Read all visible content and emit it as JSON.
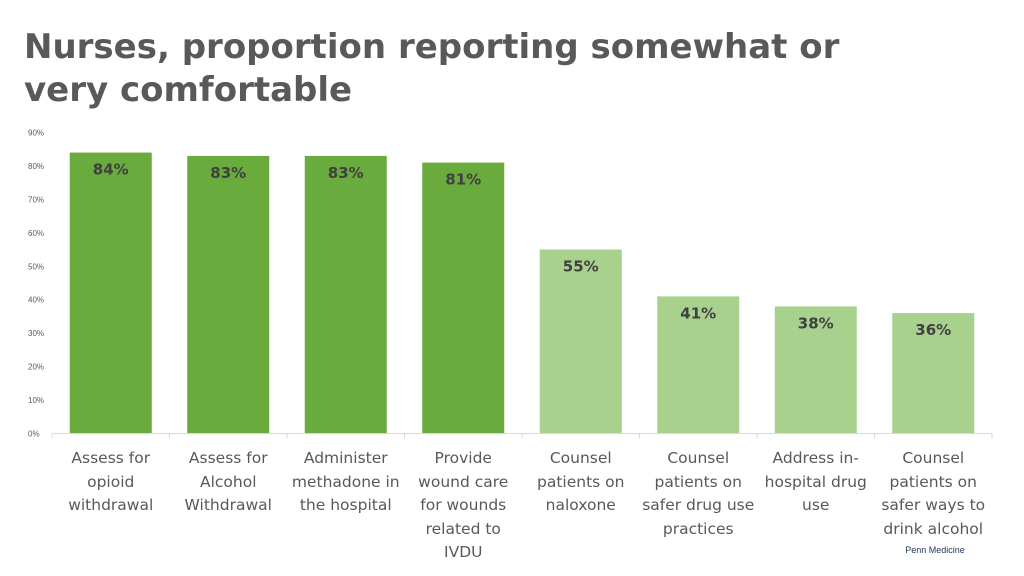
{
  "title": "Nurses, proportion reporting somewhat or very comfortable",
  "footer": {
    "brand": "Penn Medicine"
  },
  "colors": {
    "dark_green": "#6aab3d",
    "light_green": "#a9d18e",
    "gridline": "#d9d9d9",
    "tick_text": "#595959"
  },
  "chart_data": {
    "type": "bar",
    "title": "Nurses, proportion reporting somewhat or very comfortable",
    "categories": [
      "Assess for opioid withdrawal",
      "Assess for Alcohol Withdrawal",
      "Administer methadone in the hospital",
      "Provide wound care for wounds related to IVDU",
      "Counsel patients on naloxone",
      "Counsel patients on safer drug use practices",
      "Address in-hospital drug use",
      "Counsel patients on safer ways to drink alcohol"
    ],
    "category_lines": [
      [
        "Assess for",
        "opioid",
        "withdrawal"
      ],
      [
        "Assess for",
        "Alcohol",
        "Withdrawal"
      ],
      [
        "Administer",
        "methadone in",
        "the hospital"
      ],
      [
        "Provide",
        "wound care",
        "for wounds",
        "related to",
        "IVDU"
      ],
      [
        "Counsel",
        "patients on",
        "naloxone"
      ],
      [
        "Counsel",
        "patients on",
        "safer drug use",
        "practices"
      ],
      [
        "Address in-",
        "hospital drug",
        "use"
      ],
      [
        "Counsel",
        "patients on",
        "safer ways to",
        "drink alcohol"
      ]
    ],
    "values": [
      84,
      83,
      83,
      81,
      55,
      41,
      38,
      36
    ],
    "data_labels": [
      "84%",
      "83%",
      "83%",
      "81%",
      "55%",
      "41%",
      "38%",
      "36%"
    ],
    "bar_color_group": [
      "dark",
      "dark",
      "dark",
      "dark",
      "light",
      "light",
      "light",
      "light"
    ],
    "ylim": [
      0,
      90
    ],
    "yticks": [
      0,
      10,
      20,
      30,
      40,
      50,
      60,
      70,
      80,
      90
    ],
    "ytick_labels": [
      "0%",
      "10%",
      "20%",
      "30%",
      "40%",
      "50%",
      "60%",
      "70%",
      "80%",
      "90%"
    ],
    "xlabel": "",
    "ylabel": "",
    "grid": false,
    "legend": "none"
  }
}
